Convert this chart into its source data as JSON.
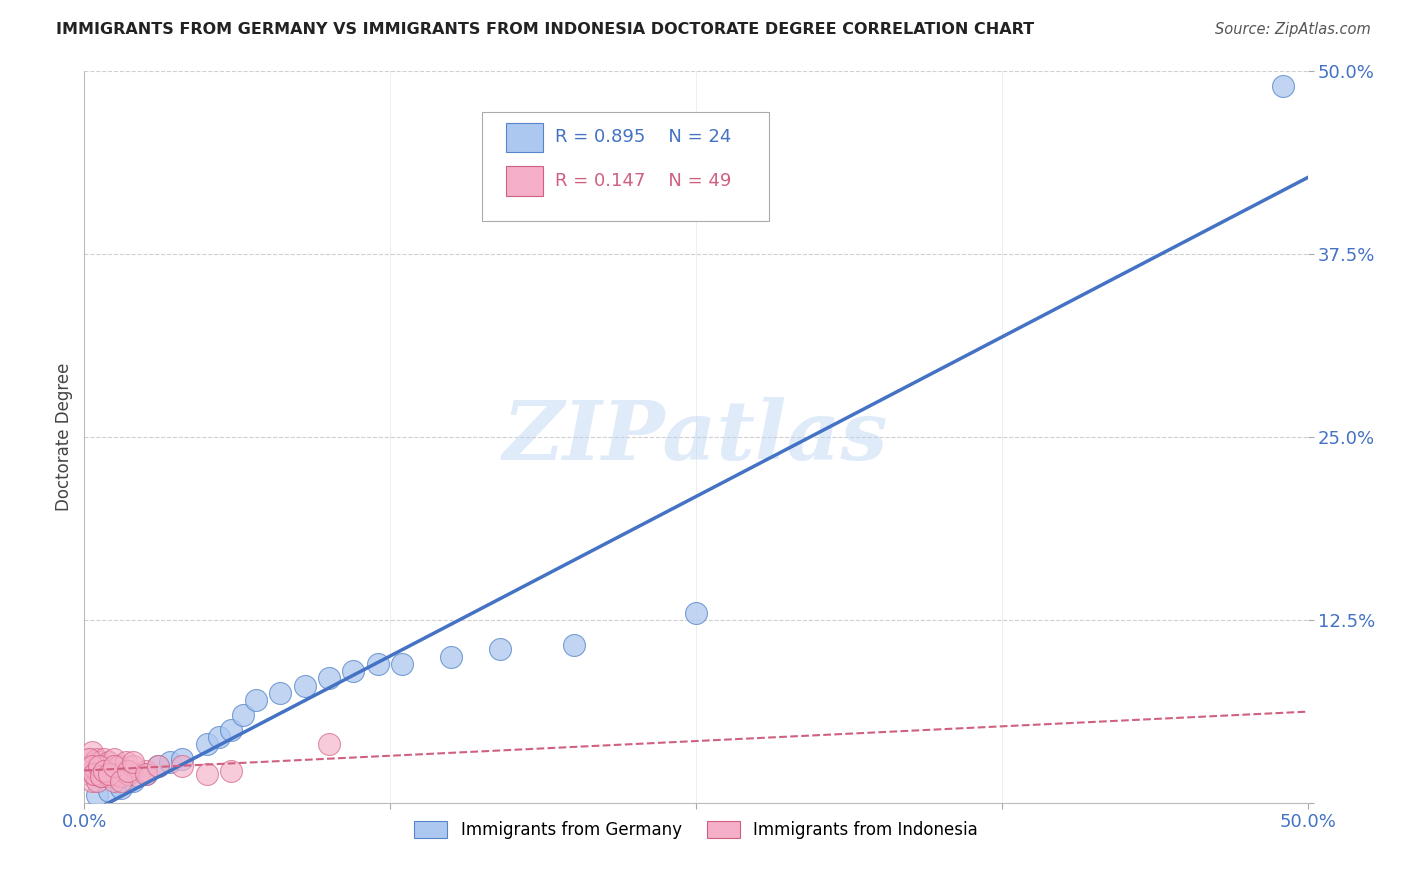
{
  "title": "IMMIGRANTS FROM GERMANY VS IMMIGRANTS FROM INDONESIA DOCTORATE DEGREE CORRELATION CHART",
  "source": "Source: ZipAtlas.com",
  "ylabel": "Doctorate Degree",
  "xlim": [
    0.0,
    0.5
  ],
  "ylim": [
    0.0,
    0.5
  ],
  "yticks": [
    0.0,
    0.125,
    0.25,
    0.375,
    0.5
  ],
  "ytick_labels": [
    "",
    "12.5%",
    "25.0%",
    "37.5%",
    "50.0%"
  ],
  "xtick_labels": [
    "0.0%",
    "50.0%"
  ],
  "legend_blue_r": "R = 0.895",
  "legend_blue_n": "N = 24",
  "legend_pink_r": "R = 0.147",
  "legend_pink_n": "N = 49",
  "legend_blue_label": "Immigrants from Germany",
  "legend_pink_label": "Immigrants from Indonesia",
  "watermark_text": "ZIPatlas",
  "blue_fill": "#adc8f0",
  "blue_edge": "#5585c8",
  "pink_fill": "#f5afc8",
  "pink_edge": "#d06080",
  "blue_line": "#4472c4",
  "pink_line": "#d06080",
  "background": "#ffffff",
  "grid_color": "#d0d0d0",
  "title_color": "#222222",
  "axis_label_color": "#444444",
  "tick_color": "#4472c4",
  "germany_x": [
    0.005,
    0.01,
    0.015,
    0.02,
    0.025,
    0.03,
    0.035,
    0.04,
    0.05,
    0.055,
    0.06,
    0.065,
    0.07,
    0.08,
    0.09,
    0.1,
    0.11,
    0.12,
    0.13,
    0.15,
    0.17,
    0.2,
    0.25,
    0.49
  ],
  "germany_y": [
    0.005,
    0.008,
    0.01,
    0.015,
    0.02,
    0.025,
    0.028,
    0.03,
    0.04,
    0.045,
    0.05,
    0.06,
    0.07,
    0.075,
    0.08,
    0.085,
    0.09,
    0.095,
    0.095,
    0.1,
    0.105,
    0.108,
    0.13,
    0.49
  ],
  "indonesia_x": [
    0.001,
    0.002,
    0.002,
    0.003,
    0.003,
    0.004,
    0.004,
    0.005,
    0.005,
    0.005,
    0.006,
    0.006,
    0.007,
    0.007,
    0.008,
    0.008,
    0.009,
    0.009,
    0.01,
    0.01,
    0.011,
    0.012,
    0.012,
    0.013,
    0.014,
    0.015,
    0.016,
    0.017,
    0.018,
    0.02,
    0.022,
    0.025,
    0.002,
    0.003,
    0.004,
    0.006,
    0.007,
    0.008,
    0.01,
    0.012,
    0.015,
    0.018,
    0.02,
    0.025,
    0.03,
    0.04,
    0.05,
    0.06,
    0.1
  ],
  "indonesia_y": [
    0.025,
    0.03,
    0.02,
    0.035,
    0.015,
    0.028,
    0.02,
    0.03,
    0.022,
    0.015,
    0.028,
    0.02,
    0.025,
    0.018,
    0.022,
    0.03,
    0.02,
    0.025,
    0.018,
    0.028,
    0.022,
    0.03,
    0.015,
    0.02,
    0.025,
    0.018,
    0.022,
    0.028,
    0.02,
    0.025,
    0.018,
    0.022,
    0.03,
    0.025,
    0.02,
    0.025,
    0.018,
    0.022,
    0.02,
    0.025,
    0.015,
    0.022,
    0.028,
    0.02,
    0.025,
    0.025,
    0.02,
    0.022,
    0.04
  ]
}
